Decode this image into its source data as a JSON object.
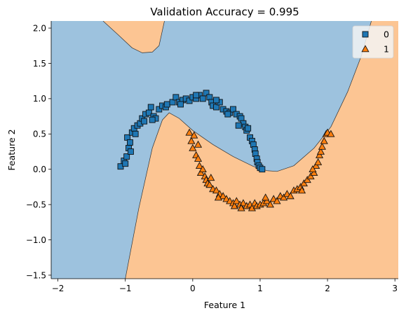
{
  "chart_data": {
    "type": "scatter",
    "title": "Validation Accuracy = 0.995",
    "xlabel": "Feature 1",
    "ylabel": "Feature 2",
    "xlim": [
      -2.1,
      3.05
    ],
    "ylim": [
      -1.55,
      2.1
    ],
    "xticks": [
      -2,
      -1,
      0,
      1,
      2,
      3
    ],
    "yticks": [
      -1.5,
      -1.0,
      -0.5,
      0.0,
      0.5,
      1.0,
      1.5,
      2.0
    ],
    "xtick_labels": [
      "−2",
      "−1",
      "0",
      "1",
      "2",
      "3"
    ],
    "ytick_labels": [
      "−1.5",
      "−1.0",
      "−0.5",
      "0.0",
      "0.5",
      "1.0",
      "1.5",
      "2.0"
    ],
    "grid": false,
    "legend_position": "top-right",
    "region_colors": {
      "class0": "#9dc2de",
      "class1": "#fcc593"
    },
    "decision_boundary": {
      "main_curve": [
        [
          -1.0,
          -1.55
        ],
        [
          -0.8,
          -0.55
        ],
        [
          -0.6,
          0.3
        ],
        [
          -0.45,
          0.7
        ],
        [
          -0.35,
          0.8
        ],
        [
          -0.2,
          0.72
        ],
        [
          0.0,
          0.55
        ],
        [
          0.3,
          0.35
        ],
        [
          0.6,
          0.18
        ],
        [
          0.9,
          0.04
        ],
        [
          1.1,
          -0.02
        ],
        [
          1.25,
          -0.03
        ],
        [
          1.5,
          0.05
        ],
        [
          1.8,
          0.3
        ],
        [
          2.05,
          0.6
        ],
        [
          2.3,
          1.1
        ],
        [
          2.5,
          1.6
        ],
        [
          2.65,
          2.1
        ]
      ],
      "top_curve": [
        [
          -1.33,
          2.1
        ],
        [
          -1.1,
          1.9
        ],
        [
          -0.9,
          1.72
        ],
        [
          -0.75,
          1.65
        ],
        [
          -0.6,
          1.66
        ],
        [
          -0.5,
          1.75
        ],
        [
          -0.42,
          2.1
        ]
      ]
    },
    "series": [
      {
        "name": "0",
        "marker": "square",
        "color": "#1f77b4",
        "points": [
          [
            -1.07,
            0.04
          ],
          [
            -1.02,
            0.12
          ],
          [
            -1.0,
            0.08
          ],
          [
            -0.98,
            0.18
          ],
          [
            -0.95,
            0.3
          ],
          [
            -0.97,
            0.45
          ],
          [
            -0.93,
            0.38
          ],
          [
            -0.9,
            0.52
          ],
          [
            -0.87,
            0.58
          ],
          [
            -0.85,
            0.5
          ],
          [
            -0.82,
            0.62
          ],
          [
            -0.78,
            0.65
          ],
          [
            -0.75,
            0.72
          ],
          [
            -0.72,
            0.68
          ],
          [
            -0.7,
            0.78
          ],
          [
            -0.65,
            0.8
          ],
          [
            -0.62,
            0.88
          ],
          [
            -0.58,
            0.75
          ],
          [
            -0.55,
            0.72
          ],
          [
            -0.5,
            0.85
          ],
          [
            -0.45,
            0.9
          ],
          [
            -0.4,
            0.88
          ],
          [
            -0.38,
            0.92
          ],
          [
            -0.3,
            0.95
          ],
          [
            -0.25,
            1.02
          ],
          [
            -0.2,
            0.95
          ],
          [
            -0.15,
            0.98
          ],
          [
            -0.1,
            1.0
          ],
          [
            -0.05,
            0.97
          ],
          [
            0.0,
            1.02
          ],
          [
            0.05,
            1.0
          ],
          [
            0.1,
            1.05
          ],
          [
            0.15,
            1.0
          ],
          [
            0.2,
            1.08
          ],
          [
            0.25,
            1.02
          ],
          [
            0.28,
            0.95
          ],
          [
            0.3,
            0.9
          ],
          [
            0.35,
            0.88
          ],
          [
            0.4,
            0.95
          ],
          [
            0.45,
            0.85
          ],
          [
            0.5,
            0.82
          ],
          [
            0.55,
            0.8
          ],
          [
            0.6,
            0.85
          ],
          [
            0.65,
            0.78
          ],
          [
            0.7,
            0.75
          ],
          [
            0.72,
            0.72
          ],
          [
            0.75,
            0.65
          ],
          [
            0.78,
            0.6
          ],
          [
            0.8,
            0.55
          ],
          [
            0.82,
            0.58
          ],
          [
            0.85,
            0.45
          ],
          [
            0.88,
            0.4
          ],
          [
            0.9,
            0.35
          ],
          [
            0.92,
            0.28
          ],
          [
            0.93,
            0.22
          ],
          [
            0.95,
            0.15
          ],
          [
            0.96,
            0.1
          ],
          [
            0.98,
            0.05
          ],
          [
            1.0,
            0.02
          ],
          [
            1.03,
            0.0
          ],
          [
            0.05,
            1.05
          ],
          [
            -0.6,
            0.7
          ],
          [
            0.52,
            0.78
          ],
          [
            0.68,
            0.62
          ],
          [
            -0.92,
            0.25
          ],
          [
            0.35,
            0.98
          ],
          [
            -0.18,
            0.92
          ]
        ]
      },
      {
        "name": "1",
        "marker": "triangle",
        "color": "#ff7f0e",
        "points": [
          [
            -0.05,
            0.52
          ],
          [
            -0.02,
            0.4
          ],
          [
            0.0,
            0.3
          ],
          [
            0.02,
            0.48
          ],
          [
            0.05,
            0.2
          ],
          [
            0.08,
            0.15
          ],
          [
            0.1,
            0.05
          ],
          [
            0.12,
            -0.05
          ],
          [
            0.15,
            0.0
          ],
          [
            0.18,
            -0.1
          ],
          [
            0.2,
            -0.15
          ],
          [
            0.22,
            -0.2
          ],
          [
            0.25,
            -0.22
          ],
          [
            0.3,
            -0.28
          ],
          [
            0.35,
            -0.3
          ],
          [
            0.4,
            -0.35
          ],
          [
            0.45,
            -0.38
          ],
          [
            0.5,
            -0.42
          ],
          [
            0.55,
            -0.45
          ],
          [
            0.6,
            -0.48
          ],
          [
            0.62,
            -0.52
          ],
          [
            0.65,
            -0.45
          ],
          [
            0.7,
            -0.5
          ],
          [
            0.75,
            -0.48
          ],
          [
            0.8,
            -0.52
          ],
          [
            0.85,
            -0.5
          ],
          [
            0.88,
            -0.55
          ],
          [
            0.92,
            -0.48
          ],
          [
            0.95,
            -0.52
          ],
          [
            1.0,
            -0.5
          ],
          [
            1.05,
            -0.48
          ],
          [
            1.1,
            -0.45
          ],
          [
            1.15,
            -0.5
          ],
          [
            1.2,
            -0.42
          ],
          [
            1.25,
            -0.45
          ],
          [
            1.3,
            -0.38
          ],
          [
            1.35,
            -0.4
          ],
          [
            1.4,
            -0.35
          ],
          [
            1.45,
            -0.38
          ],
          [
            1.5,
            -0.3
          ],
          [
            1.55,
            -0.28
          ],
          [
            1.6,
            -0.25
          ],
          [
            1.65,
            -0.2
          ],
          [
            1.7,
            -0.15
          ],
          [
            1.75,
            -0.1
          ],
          [
            1.8,
            -0.05
          ],
          [
            1.83,
            0.05
          ],
          [
            1.86,
            0.1
          ],
          [
            1.88,
            0.2
          ],
          [
            1.9,
            0.25
          ],
          [
            1.92,
            0.32
          ],
          [
            1.95,
            0.4
          ],
          [
            1.98,
            0.5
          ],
          [
            2.0,
            0.52
          ],
          [
            2.05,
            0.5
          ],
          [
            0.72,
            -0.55
          ],
          [
            1.08,
            -0.4
          ],
          [
            0.38,
            -0.4
          ],
          [
            1.62,
            -0.3
          ],
          [
            0.27,
            -0.12
          ],
          [
            1.78,
            0.0
          ],
          [
            0.08,
            0.35
          ]
        ]
      }
    ]
  }
}
